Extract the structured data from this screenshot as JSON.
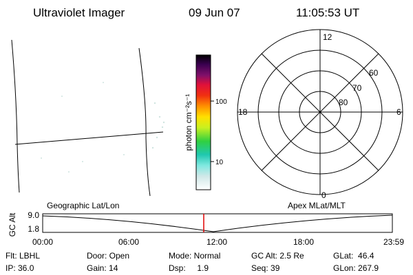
{
  "header": {
    "title": "Ultraviolet Imager",
    "date": "09 Jun 07",
    "time": "11:05:53 UT"
  },
  "colorbar": {
    "label": "photon cm⁻²s⁻¹",
    "ticks": [
      "100",
      "10"
    ]
  },
  "polar": {
    "mlt_labels": [
      "12",
      "6",
      "18",
      "0"
    ],
    "lat_labels": [
      "60",
      "70",
      "80"
    ]
  },
  "orbit": {
    "y_label": "GC Alt",
    "y_ticks": [
      "9.0",
      "1.8"
    ],
    "left_label": "Geographic Lat/Lon",
    "right_label": "Apex MLat/MLT",
    "x_ticks": [
      "00:00",
      "06:00",
      "12:00",
      "18:00",
      "23:59"
    ]
  },
  "status": {
    "rows": [
      [
        "Flt: LBHL",
        "Door: Open",
        "Mode: Normal",
        "GC Alt: 2.5 Re",
        "GLat:  46.4"
      ],
      [
        "IP: 36.0",
        "Gain: 14",
        "Dsp:     1.9",
        "Seq: 39",
        "GLon: 267.9"
      ]
    ]
  }
}
